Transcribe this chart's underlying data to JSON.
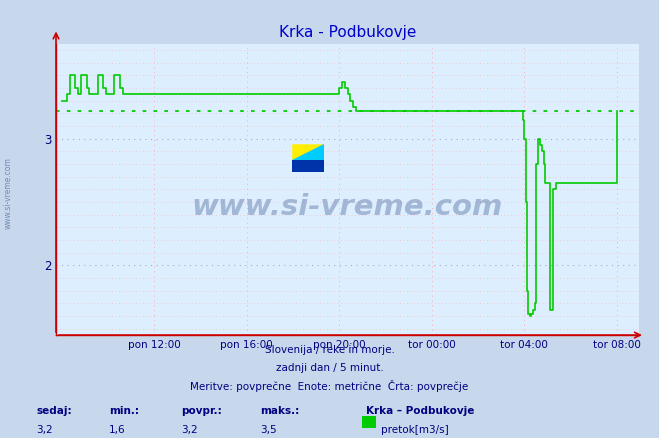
{
  "title": "Krka - Podbukovje",
  "title_color": "#0000cc",
  "background_color": "#c8d8ec",
  "plot_bg_color": "#ddeeff",
  "line_color": "#00cc00",
  "avg_value": 3.22,
  "ylim": [
    1.45,
    3.75
  ],
  "yticks": [
    2.0,
    3.0
  ],
  "footer_color": "#000080",
  "footer_lines": [
    "Slovenija / reke in morje.",
    "zadnji dan / 5 minut.",
    "Meritve: povprečne  Enote: metrične  Črta: povprečje"
  ],
  "bottom_labels": [
    "sedaj:",
    "min.:",
    "povpr.:",
    "maks.:"
  ],
  "bottom_values": [
    "3,2",
    "1,6",
    "3,2",
    "3,5"
  ],
  "bottom_legend_title": "Krka – Podbukovje",
  "bottom_legend_label": "pretok[m3/s]",
  "legend_color": "#00cc00",
  "watermark_text": "www.si-vreme.com",
  "watermark_color": "#1a3a7a",
  "x_tick_labels": [
    "pon 12:00",
    "pon 16:00",
    "pon 20:00",
    "tor 00:00",
    "tor 04:00",
    "tor 08:00"
  ],
  "x_tick_positions": [
    0.1667,
    0.3333,
    0.5,
    0.6667,
    0.8333,
    1.0
  ],
  "grid_red": "#ffaaaa",
  "grid_blue": "#aaaacc",
  "logo_colors": [
    "#ffee00",
    "#00ccff",
    "#0033aa"
  ],
  "time_points": [
    0.0,
    0.003,
    0.01,
    0.015,
    0.02,
    0.025,
    0.03,
    0.035,
    0.04,
    0.045,
    0.05,
    0.06,
    0.065,
    0.07,
    0.075,
    0.08,
    0.09,
    0.095,
    0.1,
    0.105,
    0.11,
    0.115,
    0.12,
    0.125,
    0.13,
    0.14,
    0.15,
    0.16,
    0.17,
    0.18,
    0.19,
    0.2,
    0.22,
    0.24,
    0.26,
    0.28,
    0.3,
    0.32,
    0.34,
    0.36,
    0.38,
    0.4,
    0.42,
    0.44,
    0.46,
    0.48,
    0.495,
    0.5,
    0.505,
    0.51,
    0.515,
    0.52,
    0.525,
    0.53,
    0.535,
    0.54,
    0.545,
    0.55,
    0.56,
    0.57,
    0.58,
    0.59,
    0.6,
    0.62,
    0.64,
    0.66,
    0.68,
    0.7,
    0.72,
    0.74,
    0.76,
    0.78,
    0.8,
    0.82,
    0.83,
    0.833,
    0.836,
    0.838,
    0.84,
    0.843,
    0.846,
    0.849,
    0.852,
    0.855,
    0.858,
    0.86,
    0.862,
    0.865,
    0.868,
    0.87,
    0.875,
    0.88,
    0.885,
    0.89,
    0.895,
    0.9,
    0.91,
    0.92,
    0.93,
    0.94,
    0.95,
    0.96,
    0.97,
    0.99,
    1.0
  ],
  "flow_values": [
    3.3,
    3.3,
    3.35,
    3.5,
    3.5,
    3.4,
    3.35,
    3.5,
    3.5,
    3.4,
    3.35,
    3.35,
    3.5,
    3.5,
    3.4,
    3.35,
    3.35,
    3.5,
    3.5,
    3.4,
    3.35,
    3.35,
    3.35,
    3.35,
    3.35,
    3.35,
    3.35,
    3.35,
    3.35,
    3.35,
    3.35,
    3.35,
    3.35,
    3.35,
    3.35,
    3.35,
    3.35,
    3.35,
    3.35,
    3.35,
    3.35,
    3.35,
    3.35,
    3.35,
    3.35,
    3.35,
    3.35,
    3.4,
    3.45,
    3.4,
    3.35,
    3.3,
    3.25,
    3.22,
    3.22,
    3.22,
    3.22,
    3.22,
    3.22,
    3.22,
    3.22,
    3.22,
    3.22,
    3.22,
    3.22,
    3.22,
    3.22,
    3.22,
    3.22,
    3.22,
    3.22,
    3.22,
    3.22,
    3.22,
    3.15,
    3.0,
    2.5,
    1.8,
    1.62,
    1.6,
    1.62,
    1.65,
    1.7,
    2.8,
    3.0,
    3.0,
    2.95,
    2.9,
    2.8,
    2.65,
    2.65,
    1.65,
    2.6,
    2.65,
    2.65,
    2.65,
    2.65,
    2.65,
    2.65,
    2.65,
    2.65,
    2.65,
    2.65,
    2.65,
    3.22
  ]
}
